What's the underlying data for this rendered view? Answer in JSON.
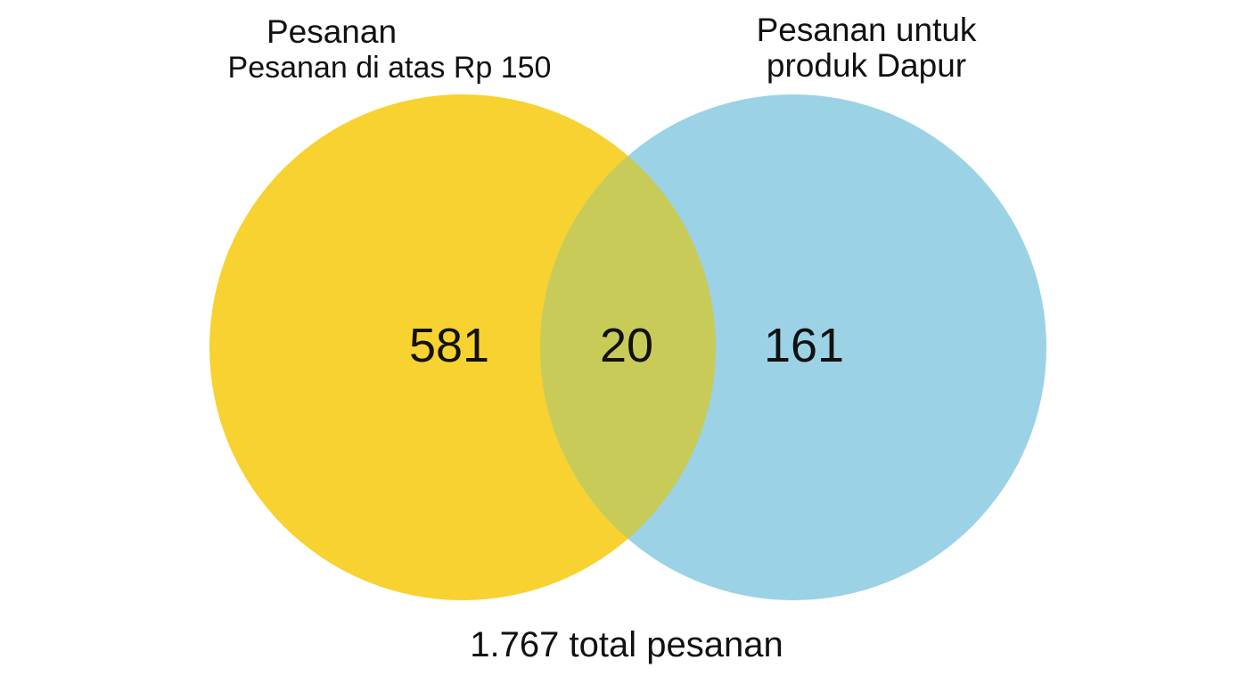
{
  "sets": {
    "a": {
      "label_line1": "Pesanan",
      "label_line2": "Pesanan di atas Rp 150",
      "color": "#F7D230"
    },
    "b": {
      "label": "Pesanan untuk produk Dapur",
      "color": "#9BD2E6"
    },
    "overlap_color": "#C8CB57"
  },
  "regions": {
    "a_only": "581",
    "both": "20",
    "b_only": "161"
  },
  "total": "1.767 total pesanan"
}
